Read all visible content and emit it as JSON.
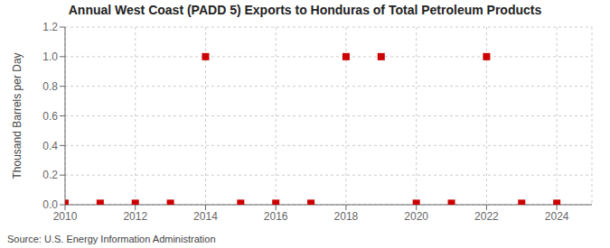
{
  "chart_data": {
    "type": "scatter",
    "title": "Annual West Coast (PADD 5) Exports to Honduras of Total Petroleum Products",
    "y_label": "Thousand Barrels per Day",
    "source": "Source: U.S. Energy Information Administration",
    "x": [
      2010,
      2011,
      2012,
      2013,
      2014,
      2015,
      2016,
      2017,
      2018,
      2019,
      2020,
      2021,
      2022,
      2023,
      2024
    ],
    "values": [
      0.01,
      0.01,
      0.01,
      0.01,
      1.0,
      0.01,
      0.01,
      0.01,
      1.0,
      1.0,
      0.01,
      0.01,
      1.0,
      0.01,
      0.01
    ],
    "color": "#cc0000",
    "marker": "square",
    "xlim": [
      2010,
      2025
    ],
    "ylim": [
      0.0,
      1.2
    ],
    "xticks": [
      2010,
      2012,
      2014,
      2016,
      2018,
      2020,
      2022,
      2024
    ],
    "yticks": [
      {
        "value": 0,
        "label": "0.0"
      },
      0.2,
      0.4,
      0.6,
      0.8,
      {
        "value": 1,
        "label": "1.0"
      },
      1.2
    ],
    "grid": true
  }
}
